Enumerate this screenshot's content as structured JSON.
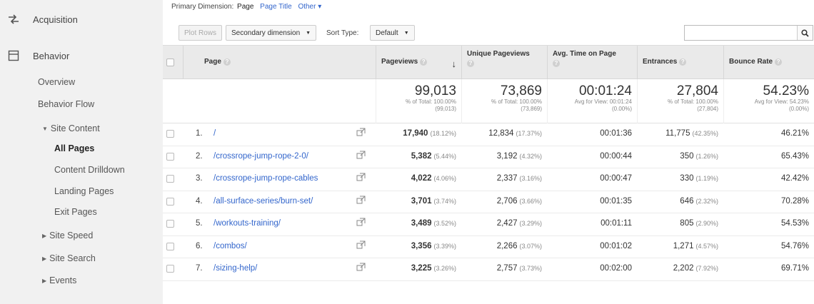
{
  "sidebar": {
    "acquisition_label": "Acquisition",
    "behavior_label": "Behavior",
    "items": [
      {
        "label": "Overview"
      },
      {
        "label": "Behavior Flow"
      },
      {
        "label": "Site Content"
      },
      {
        "label": "All Pages"
      },
      {
        "label": "Content Drilldown"
      },
      {
        "label": "Landing Pages"
      },
      {
        "label": "Exit Pages"
      },
      {
        "label": "Site Speed"
      },
      {
        "label": "Site Search"
      },
      {
        "label": "Events"
      }
    ]
  },
  "dimension": {
    "label": "Primary Dimension:",
    "current": "Page",
    "page_title": "Page Title",
    "other": "Other ▾"
  },
  "toolbar": {
    "plot_rows": "Plot Rows",
    "secondary_dimension": "Secondary dimension",
    "sort_type_label": "Sort Type:",
    "sort_default": "Default"
  },
  "headers": {
    "page": "Page",
    "pageviews": "Pageviews",
    "unique_pageviews": "Unique Pageviews",
    "avg_time": "Avg. Time on Page",
    "entrances": "Entrances",
    "bounce_rate": "Bounce Rate"
  },
  "totals": {
    "pageviews": {
      "value": "99,013",
      "line1": "% of Total: 100.00%",
      "line2": "(99,013)"
    },
    "unique_pageviews": {
      "value": "73,869",
      "line1": "% of Total: 100.00%",
      "line2": "(73,869)"
    },
    "avg_time": {
      "value": "00:01:24",
      "line1": "Avg for View: 00:01:24",
      "line2": "(0.00%)"
    },
    "entrances": {
      "value": "27,804",
      "line1": "% of Total: 100.00%",
      "line2": "(27,804)"
    },
    "bounce_rate": {
      "value": "54.23%",
      "line1": "Avg for View: 54.23%",
      "line2": "(0.00%)"
    }
  },
  "rows": [
    {
      "num": "1.",
      "page": "/",
      "pageviews": "17,940",
      "pageviews_pct": "(18.12%)",
      "unique": "12,834",
      "unique_pct": "(17.37%)",
      "avg_time": "00:01:36",
      "entrances": "11,775",
      "entrances_pct": "(42.35%)",
      "bounce": "46.21%"
    },
    {
      "num": "2.",
      "page": "/crossrope-jump-rope-2-0/",
      "pageviews": "5,382",
      "pageviews_pct": "(5.44%)",
      "unique": "3,192",
      "unique_pct": "(4.32%)",
      "avg_time": "00:00:44",
      "entrances": "350",
      "entrances_pct": "(1.26%)",
      "bounce": "65.43%"
    },
    {
      "num": "3.",
      "page": "/crossrope-jump-rope-cables",
      "pageviews": "4,022",
      "pageviews_pct": "(4.06%)",
      "unique": "2,337",
      "unique_pct": "(3.16%)",
      "avg_time": "00:00:47",
      "entrances": "330",
      "entrances_pct": "(1.19%)",
      "bounce": "42.42%"
    },
    {
      "num": "4.",
      "page": "/all-surface-series/burn-set/",
      "pageviews": "3,701",
      "pageviews_pct": "(3.74%)",
      "unique": "2,706",
      "unique_pct": "(3.66%)",
      "avg_time": "00:01:35",
      "entrances": "646",
      "entrances_pct": "(2.32%)",
      "bounce": "70.28%"
    },
    {
      "num": "5.",
      "page": "/workouts-training/",
      "pageviews": "3,489",
      "pageviews_pct": "(3.52%)",
      "unique": "2,427",
      "unique_pct": "(3.29%)",
      "avg_time": "00:01:11",
      "entrances": "805",
      "entrances_pct": "(2.90%)",
      "bounce": "54.53%"
    },
    {
      "num": "6.",
      "page": "/combos/",
      "pageviews": "3,356",
      "pageviews_pct": "(3.39%)",
      "unique": "2,266",
      "unique_pct": "(3.07%)",
      "avg_time": "00:01:02",
      "entrances": "1,271",
      "entrances_pct": "(4.57%)",
      "bounce": "54.76%"
    },
    {
      "num": "7.",
      "page": "/sizing-help/",
      "pageviews": "3,225",
      "pageviews_pct": "(3.26%)",
      "unique": "2,757",
      "unique_pct": "(3.73%)",
      "avg_time": "00:02:00",
      "entrances": "2,202",
      "entrances_pct": "(7.92%)",
      "bounce": "69.71%"
    }
  ]
}
